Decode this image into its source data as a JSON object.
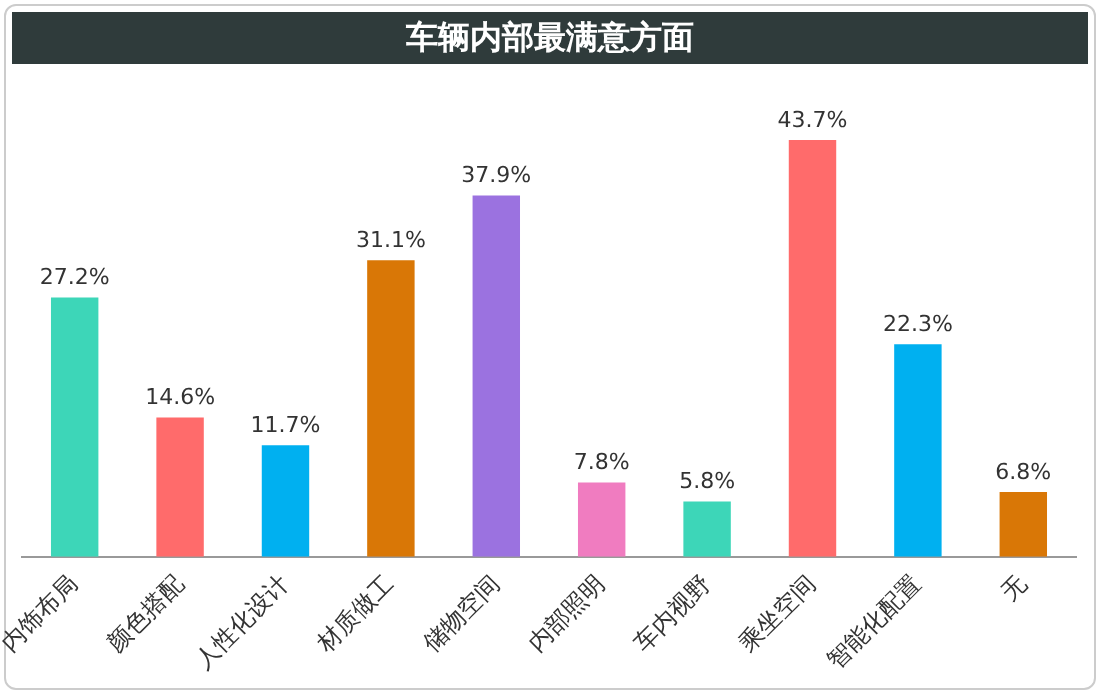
{
  "chart_data": {
    "type": "bar",
    "title": "车辆内部最满意方面",
    "categories": [
      "内饰布局",
      "颜色搭配",
      "人性化设计",
      "材质做工",
      "储物空间",
      "内部照明",
      "车内视野",
      "乘坐空间",
      "智能化配置",
      "无"
    ],
    "values": [
      27.2,
      14.6,
      11.7,
      31.1,
      37.9,
      7.8,
      5.8,
      43.7,
      22.3,
      6.8
    ],
    "colors": [
      "#3dd6b8",
      "#ff6b6b",
      "#00b0f0",
      "#d97706",
      "#9b72e0",
      "#f07cc0",
      "#3dd6b8",
      "#ff6b6b",
      "#00b0f0",
      "#d97706"
    ],
    "value_labels": [
      "27.2%",
      "14.6%",
      "11.7%",
      "31.1%",
      "37.9%",
      "7.8%",
      "5.8%",
      "43.7%",
      "22.3%",
      "6.8%"
    ],
    "grid": false,
    "legend": false
  }
}
